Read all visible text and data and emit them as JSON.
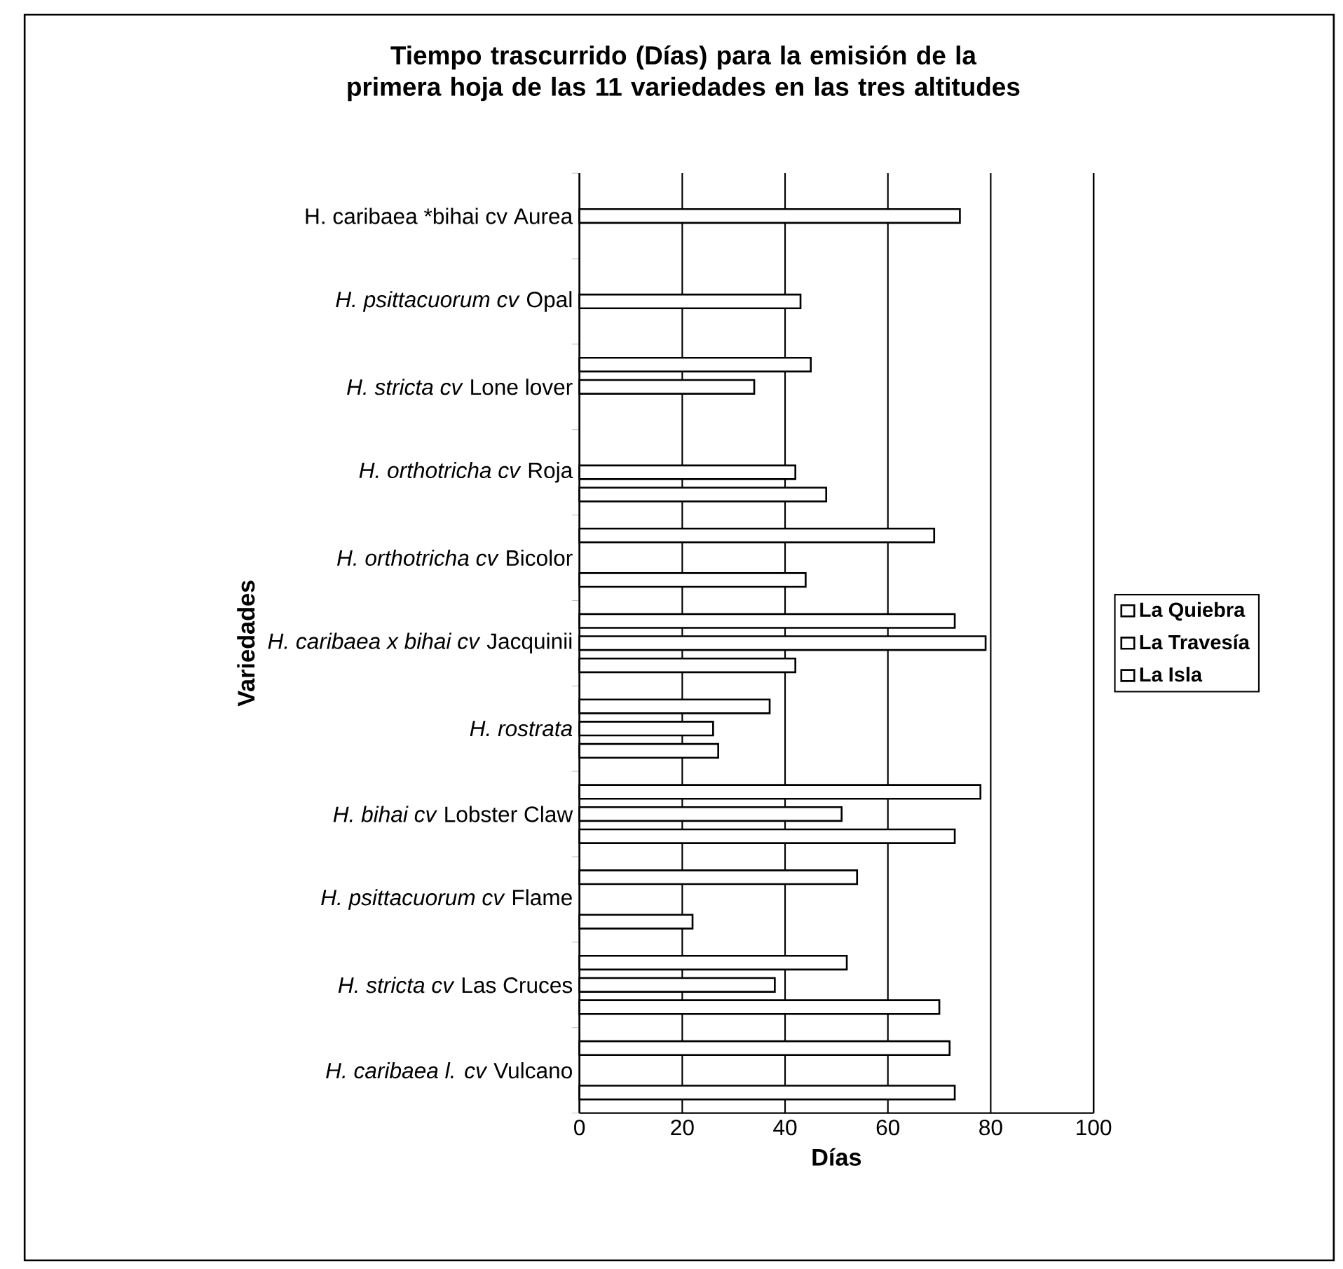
{
  "chart_data": {
    "type": "bar",
    "orientation": "horizontal",
    "title": "Tiempo trascurrido (Días) para la emisión de la primera hoja de las 11 variedades en las tres altitudes",
    "xlabel": "Días",
    "ylabel": "Variedades",
    "categories": [
      "H. caribaea *bihai cv Aurea",
      "*H. psittacuorum cv* Opal",
      "*H. stricta cv* Lone lover",
      "*H. orthotricha cv* Roja",
      "*H. orthotricha cv* Bicolor",
      "*H. caribaea x bihai cv* Jacquinii",
      "*H. rostrata*",
      "*H. bihai cv* Lobster Claw",
      "*H. psittacuorum cv* Flame",
      "*H. stricta cv* Las Cruces",
      "*H. caribaea l. cv* Vulcano"
    ],
    "series": [
      {
        "name": "La Quiebra",
        "color": "#ffffff",
        "values": [
          null,
          null,
          null,
          48,
          44,
          42,
          27,
          73,
          22,
          70,
          73
        ]
      },
      {
        "name": "La Travesía",
        "color": "#ffffff",
        "values": [
          74,
          43,
          34,
          42,
          null,
          79,
          26,
          51,
          null,
          38,
          null
        ]
      },
      {
        "name": "La Isla",
        "color": "#ffffff",
        "values": [
          null,
          null,
          45,
          null,
          69,
          73,
          37,
          78,
          54,
          52,
          72
        ]
      }
    ],
    "xlim": [
      0,
      100
    ],
    "xticks": [
      0,
      20,
      40,
      60,
      80,
      100
    ],
    "grid": "x",
    "legend": "right"
  }
}
